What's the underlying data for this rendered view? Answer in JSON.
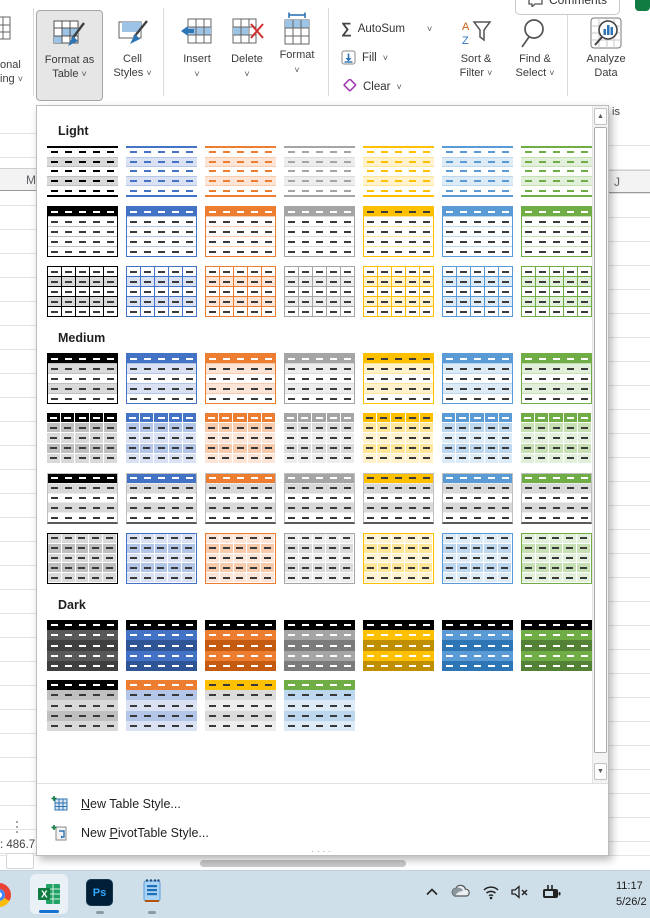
{
  "ribbon": {
    "conditional_partial": {
      "line1": "onal",
      "line2": "ing"
    },
    "format_as_table": {
      "line1": "Format as",
      "line2": "Table"
    },
    "cell_styles": {
      "line1": "Cell",
      "line2": "Styles"
    },
    "insert_label": "Insert",
    "delete_label": "Delete",
    "format_label": "Format",
    "autosum_label": "AutoSum",
    "fill_label": "Fill",
    "clear_label": "Clear",
    "sort_filter": {
      "line1": "Sort &",
      "line2": "Filter"
    },
    "find_select": {
      "line1": "Find &",
      "line2": "Select"
    },
    "analyze_data": {
      "line1": "Analyze",
      "line2": "Data"
    },
    "comments_label": "Comments",
    "analysis_partial": "is",
    "sigma": "∑"
  },
  "panel": {
    "sections": [
      {
        "label": "Light",
        "rows": [
          {
            "style": "lines",
            "colors": [
              "black",
              "blue",
              "orange",
              "gray",
              "gold",
              "sky",
              "green"
            ]
          },
          {
            "style": "header_outline",
            "colors": [
              "black",
              "blue",
              "orange",
              "gray",
              "gold",
              "sky",
              "green"
            ]
          },
          {
            "style": "grid",
            "colors": [
              "black",
              "blue",
              "orange",
              "gray",
              "gold",
              "sky",
              "green"
            ]
          }
        ]
      },
      {
        "label": "Medium",
        "rows": [
          {
            "style": "solid_header_banded",
            "colors": [
              "black",
              "blue",
              "orange",
              "gray",
              "gold",
              "sky",
              "green"
            ]
          },
          {
            "style": "cells",
            "colors": [
              "black",
              "blue",
              "orange",
              "gray",
              "gold",
              "sky",
              "green"
            ]
          },
          {
            "style": "solid_header_gray",
            "colors": [
              "black",
              "blue",
              "orange",
              "gray",
              "gold",
              "sky",
              "green"
            ]
          },
          {
            "style": "cell_grid",
            "colors": [
              "black",
              "blue",
              "orange",
              "gray",
              "gold",
              "sky",
              "green"
            ]
          }
        ]
      },
      {
        "label": "Dark",
        "rows": [
          {
            "style": "dark",
            "colors": [
              "black",
              "blue",
              "orange",
              "gray",
              "gold",
              "sky",
              "green"
            ]
          },
          {
            "style": "dark_contrast",
            "colors": [
              "black",
              "orange",
              "gold",
              "green"
            ],
            "bodies": [
              "black",
              "blue",
              "gray",
              "sky"
            ]
          }
        ]
      }
    ],
    "menu": {
      "new_table_u": "N",
      "new_table_rest": "ew Table Style...",
      "new_pivot_pre": "New ",
      "new_pivot_u": "P",
      "new_pivot_rest": "ivotTable Style...",
      "resize_dots": "...."
    }
  },
  "palette": {
    "black": {
      "accent": "#000000",
      "tint": "#d9d9d9",
      "tint2": "#bfbfbf",
      "dark": "#3f3f3f",
      "body1": "#595959"
    },
    "blue": {
      "accent": "#4472c4",
      "tint": "#d9e1f2",
      "tint2": "#b4c6e7",
      "dark": "#2f5597"
    },
    "orange": {
      "accent": "#ed7d31",
      "tint": "#fce4d6",
      "tint2": "#f8cbad",
      "dark": "#c55a11"
    },
    "gray": {
      "accent": "#a5a5a5",
      "tint": "#ededed",
      "tint2": "#dbdbdb",
      "dark": "#7b7b7b"
    },
    "gold": {
      "accent": "#ffc000",
      "tint": "#fff2cc",
      "tint2": "#ffe699",
      "dark": "#bf8f00"
    },
    "sky": {
      "accent": "#5b9bd5",
      "tint": "#ddebf7",
      "tint2": "#bdd7ee",
      "dark": "#2e75b6"
    },
    "green": {
      "accent": "#70ad47",
      "tint": "#e2efda",
      "tint2": "#c6e0b4",
      "dark": "#538135"
    }
  },
  "background": {
    "left_col_header": "M",
    "right_col_header": "J",
    "status_text": ": 486.7"
  },
  "taskbar": {
    "time": "11:17",
    "date": "5/26/2",
    "ps_label": "Ps",
    "excel_label": "X"
  },
  "icons": {
    "chevron": "˅",
    "scroll_up": "▲",
    "scroll_down": "▼"
  }
}
